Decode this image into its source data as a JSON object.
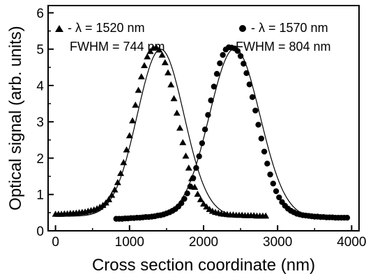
{
  "chart_data": {
    "type": "scatter",
    "xlabel": "Cross section coordinate (nm)",
    "ylabel": "Optical signal (arb. units)",
    "xlim": [
      -100,
      4100
    ],
    "ylim": [
      0,
      6.2
    ],
    "xticks": [
      0,
      1000,
      2000,
      3000,
      4000
    ],
    "yticks": [
      0,
      1,
      2,
      3,
      4,
      5,
      6
    ],
    "grid": false,
    "legend_position": "top",
    "series": [
      {
        "marker": "triangle",
        "legend_line1": "- λ = 1520 nm",
        "legend_line2": "FWHM = 744 nm",
        "fit": {
          "baseline": 0.4,
          "amplitude": 4.6,
          "center": 1420,
          "fwhm": 744
        },
        "x": [
          0,
          40,
          80,
          120,
          160,
          200,
          240,
          280,
          320,
          360,
          400,
          440,
          480,
          520,
          560,
          600,
          640,
          680,
          720,
          760,
          800,
          840,
          880,
          920,
          960,
          1000,
          1040,
          1080,
          1120,
          1160,
          1200,
          1240,
          1280,
          1320,
          1360,
          1400,
          1440,
          1480,
          1520,
          1560,
          1600,
          1640,
          1680,
          1720,
          1760,
          1800,
          1840,
          1880,
          1920,
          1960,
          2000,
          2040,
          2080,
          2120,
          2160,
          2200,
          2240,
          2280,
          2320,
          2360,
          2400,
          2440,
          2480,
          2520,
          2560,
          2600,
          2640,
          2680,
          2720,
          2760,
          2800,
          2840
        ],
        "y": [
          0.46,
          0.46,
          0.46,
          0.47,
          0.47,
          0.48,
          0.48,
          0.49,
          0.5,
          0.51,
          0.52,
          0.54,
          0.56,
          0.58,
          0.61,
          0.65,
          0.7,
          0.77,
          0.86,
          0.98,
          1.13,
          1.33,
          1.58,
          1.88,
          2.23,
          2.62,
          3.03,
          3.46,
          3.87,
          4.24,
          4.55,
          4.79,
          4.94,
          5.03,
          5.05,
          4.98,
          4.84,
          4.63,
          4.35,
          4.02,
          3.64,
          3.24,
          2.83,
          2.43,
          2.06,
          1.73,
          1.44,
          1.2,
          1.01,
          0.86,
          0.74,
          0.66,
          0.59,
          0.54,
          0.51,
          0.49,
          0.47,
          0.46,
          0.45,
          0.44,
          0.44,
          0.43,
          0.43,
          0.43,
          0.42,
          0.42,
          0.42,
          0.42,
          0.41,
          0.41,
          0.41,
          0.41
        ]
      },
      {
        "marker": "circle",
        "legend_line1": "- λ = 1570 nm",
        "legend_line2": "FWHM = 804 nm",
        "fit": {
          "baseline": 0.35,
          "amplitude": 4.67,
          "center": 2420,
          "fwhm": 804
        },
        "x": [
          820,
          860,
          900,
          940,
          980,
          1020,
          1060,
          1100,
          1140,
          1180,
          1220,
          1260,
          1300,
          1340,
          1380,
          1420,
          1460,
          1500,
          1540,
          1580,
          1620,
          1660,
          1700,
          1740,
          1780,
          1820,
          1860,
          1900,
          1940,
          1980,
          2020,
          2060,
          2100,
          2140,
          2180,
          2220,
          2260,
          2300,
          2340,
          2380,
          2420,
          2460,
          2500,
          2540,
          2580,
          2620,
          2660,
          2700,
          2740,
          2780,
          2820,
          2860,
          2900,
          2940,
          2980,
          3020,
          3060,
          3100,
          3140,
          3180,
          3220,
          3260,
          3300,
          3340,
          3380,
          3420,
          3460,
          3500,
          3540,
          3580,
          3620,
          3660,
          3700,
          3740,
          3780,
          3820,
          3860,
          3900,
          3940
        ],
        "y": [
          0.33,
          0.33,
          0.33,
          0.34,
          0.34,
          0.35,
          0.35,
          0.36,
          0.36,
          0.37,
          0.38,
          0.38,
          0.39,
          0.4,
          0.42,
          0.43,
          0.45,
          0.48,
          0.51,
          0.55,
          0.6,
          0.67,
          0.76,
          0.88,
          1.03,
          1.22,
          1.45,
          1.73,
          2.05,
          2.41,
          2.79,
          3.19,
          3.59,
          3.97,
          4.32,
          4.61,
          4.84,
          4.99,
          5.05,
          5.04,
          5.02,
          4.95,
          4.81,
          4.6,
          4.34,
          4.03,
          3.68,
          3.31,
          2.92,
          2.54,
          2.18,
          1.85,
          1.55,
          1.3,
          1.09,
          0.92,
          0.79,
          0.69,
          0.61,
          0.55,
          0.51,
          0.47,
          0.45,
          0.43,
          0.42,
          0.41,
          0.4,
          0.39,
          0.39,
          0.38,
          0.38,
          0.37,
          0.37,
          0.37,
          0.36,
          0.36,
          0.36,
          0.36,
          0.36
        ]
      }
    ]
  }
}
